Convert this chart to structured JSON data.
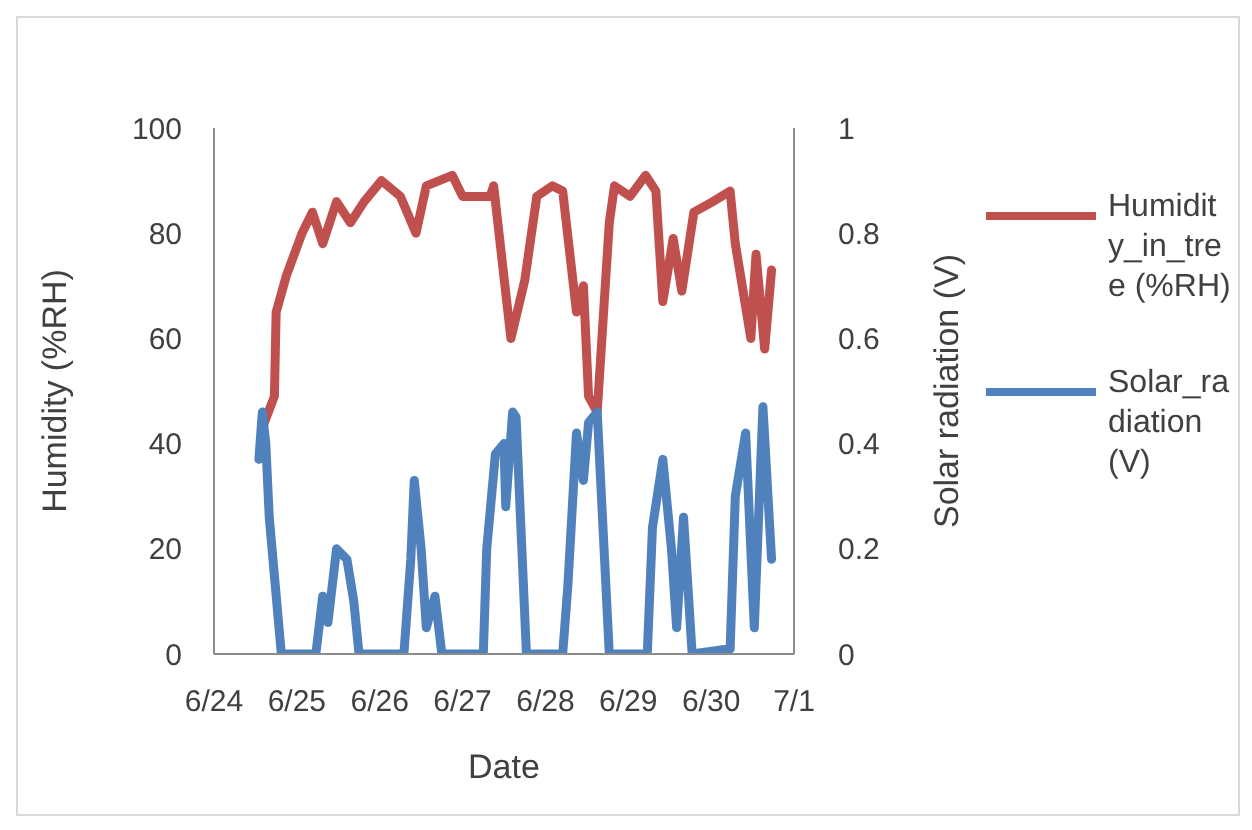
{
  "chart_data": {
    "type": "line",
    "xlabel": "Date",
    "ylabel": "Humidity (%RH)",
    "y2label": "Solar radiation (V)",
    "xlim": [
      "--06-24",
      "--07-01"
    ],
    "xticks": [
      {
        "value": "--06-24",
        "label": "6/24"
      },
      {
        "value": "--06-25",
        "label": "6/25"
      },
      {
        "value": "--06-26",
        "label": "6/26"
      },
      {
        "value": "--06-27",
        "label": "6/27"
      },
      {
        "value": "--06-28",
        "label": "6/28"
      },
      {
        "value": "--06-29",
        "label": "6/29"
      },
      {
        "value": "--06-30",
        "label": "6/30"
      },
      {
        "value": "--07-01",
        "label": "7/1"
      }
    ],
    "ylim": [
      0,
      100
    ],
    "yticks": [
      0,
      20,
      40,
      60,
      80,
      100
    ],
    "y2lim": [
      0,
      1
    ],
    "y2ticks": [
      0,
      0.2,
      0.4,
      0.6,
      0.8,
      {
        "value": 1,
        "label": "1"
      }
    ],
    "grid": false,
    "legend": "right",
    "marker": "none",
    "line_style": "solid",
    "series": [
      {
        "name": "Humidity_in_tree (%RH)",
        "color": "#c0504d",
        "x": [
          "--06-24T14:00",
          "--06-24T17:30",
          "--06-24T18:00",
          "--06-24T21:00",
          "--06-25T01:30",
          "--06-25T04:30",
          "--06-25T07:30",
          "--06-25T11:30",
          "--06-25T15:30",
          "--06-25T19:30",
          "--06-26T00:30",
          "--06-26T06:00",
          "--06-26T10:30",
          "--06-26T13:30",
          "--06-26T21:00",
          "--06-27T00:00",
          "--06-27T08:00",
          "--06-27T09:00",
          "--06-27T14:00",
          "--06-27T18:00",
          "--06-27T21:30",
          "--06-28T02:00",
          "--06-28T05:00",
          "--06-28T09:00",
          "--06-28T11:00",
          "--06-28T12:30",
          "--06-28T15:00",
          "--06-28T18:30",
          "--06-28T20:00",
          "--06-29T00:30",
          "--06-29T05:00",
          "--06-29T08:00",
          "--06-29T10:00",
          "--06-29T13:00",
          "--06-29T15:30",
          "--06-29T19:00",
          "--06-30T00:30",
          "--06-30T05:30",
          "--06-30T07:00",
          "--06-30T11:30",
          "--06-30T13:00",
          "--06-30T15:30",
          "--06-30T17:30"
        ],
        "values": [
          43,
          49,
          65,
          72,
          80,
          84,
          78,
          86,
          82,
          86,
          90,
          87,
          80,
          89,
          91,
          87,
          87,
          89,
          60,
          71,
          87,
          89,
          88,
          65,
          70,
          49,
          46,
          82,
          89,
          87,
          91,
          88,
          67,
          79,
          69,
          84,
          86,
          88,
          78,
          60,
          76,
          58,
          73
        ]
      },
      {
        "name": "Solar_radiation(V)",
        "color": "#4f81bd",
        "axis": "y2",
        "x": [
          "--06-24T13:00",
          "--06-24T14:00",
          "--06-24T15:00",
          "--06-24T16:00",
          "--06-24T19:30",
          "--06-25T05:30",
          "--06-25T07:30",
          "--06-25T09:00",
          "--06-25T11:30",
          "--06-25T14:30",
          "--06-25T16:30",
          "--06-25T18:00",
          "--06-26T07:00",
          "--06-26T09:00",
          "--06-26T10:00",
          "--06-26T12:00",
          "--06-26T13:30",
          "--06-26T16:00",
          "--06-26T18:00",
          "--06-27T06:00",
          "--06-27T07:00",
          "--06-27T09:30",
          "--06-27T12:00",
          "--06-27T12:30",
          "--06-27T14:30",
          "--06-27T15:30",
          "--06-27T18:30",
          "--06-28T05:00",
          "--06-28T06:30",
          "--06-28T09:00",
          "--06-28T11:00",
          "--06-28T12:30",
          "--06-28T15:00",
          "--06-28T18:30",
          "--06-29T05:30",
          "--06-29T07:00",
          "--06-29T10:00",
          "--06-29T12:30",
          "--06-29T14:00",
          "--06-29T16:00",
          "--06-29T18:30",
          "--06-30T05:30",
          "--06-30T07:00",
          "--06-30T10:00",
          "--06-30T12:30",
          "--06-30T15:00",
          "--06-30T17:30"
        ],
        "values": [
          0.37,
          0.46,
          0.4,
          0.26,
          0,
          0,
          0.11,
          0.06,
          0.2,
          0.18,
          0.1,
          0,
          0,
          0.18,
          0.33,
          0.2,
          0.05,
          0.11,
          0,
          0,
          0.2,
          0.38,
          0.4,
          0.28,
          0.46,
          0.45,
          0,
          0,
          0.13,
          0.42,
          0.33,
          0.44,
          0.46,
          0,
          0,
          0.24,
          0.37,
          0.2,
          0.05,
          0.26,
          0,
          0.01,
          0.3,
          0.42,
          0.05,
          0.47,
          0.18
        ]
      }
    ]
  }
}
